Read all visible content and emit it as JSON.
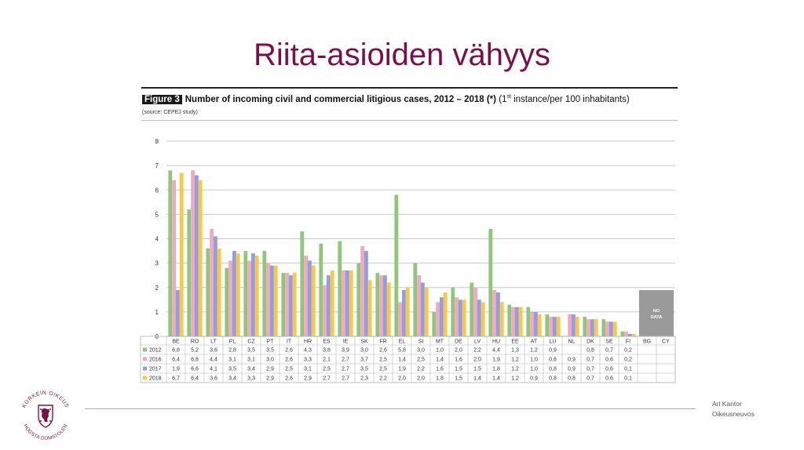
{
  "slide": {
    "title": "Riita-asioiden vähyys",
    "presenter_name": "Ari Kantor",
    "presenter_role": "Oikeusneuvos",
    "logo": {
      "icon": "lion-crest-icon",
      "text_top": "KORKEIN OIKEUS",
      "text_bottom": "HÖGSTA DOMSTOLEN",
      "color": "#7b1048"
    }
  },
  "figure": {
    "badge": "Figure 3",
    "heading": "Number of incoming civil and commercial litigious cases, 2012 – 2018 (*)",
    "heading_suffix_pre": "(1",
    "heading_sup": "st",
    "heading_suffix_post": " instance/per 100 inhabitants)",
    "source": "(source: CEPEJ study)"
  },
  "chart_data": {
    "type": "bar",
    "ylim": [
      0,
      8
    ],
    "yticks": [
      "0",
      "1",
      "2",
      "3",
      "4",
      "5",
      "6",
      "7",
      "8"
    ],
    "grid": true,
    "categories": [
      "BE",
      "RO",
      "LT",
      "PL",
      "CZ",
      "PT",
      "IT",
      "HR",
      "ES",
      "IE",
      "SK",
      "FR",
      "EL",
      "SI",
      "MT",
      "DE",
      "LV",
      "HU",
      "EE",
      "AT",
      "LU",
      "NL",
      "DK",
      "SE",
      "FI",
      "BG",
      "CY"
    ],
    "series": [
      {
        "name": "2012",
        "color": "#8fc67a",
        "values": [
          6.8,
          5.2,
          3.6,
          2.8,
          3.5,
          3.5,
          2.6,
          4.3,
          3.8,
          3.9,
          3.0,
          2.6,
          5.8,
          3.0,
          1.0,
          2.0,
          2.2,
          4.4,
          1.3,
          1.2,
          0.9,
          null,
          0.8,
          0.7,
          0.2,
          null,
          null
        ],
        "labels": [
          "6,8",
          "5,2",
          "3,6",
          "2,8",
          "3,5",
          "3,5",
          "2,6",
          "4,3",
          "3,8",
          "3,9",
          "3,0",
          "2,6",
          "5,8",
          "3,0",
          "1,0",
          "2,0",
          "2,2",
          "4,4",
          "1,3",
          "1,2",
          "0,9",
          "",
          "0,8",
          "0,7",
          "0,2",
          "",
          ""
        ]
      },
      {
        "name": "2016",
        "color": "#f2a7c3",
        "values": [
          6.4,
          6.8,
          4.4,
          3.1,
          3.1,
          3.0,
          2.6,
          3.3,
          2.1,
          2.7,
          3.7,
          2.5,
          1.4,
          2.5,
          1.4,
          1.6,
          2.0,
          1.9,
          1.2,
          1.0,
          0.8,
          0.9,
          0.7,
          0.6,
          0.2,
          null,
          null
        ],
        "labels": [
          "6,4",
          "6,8",
          "4,4",
          "3,1",
          "3,1",
          "3,0",
          "2,6",
          "3,3",
          "2,1",
          "2,7",
          "3,7",
          "2,5",
          "1,4",
          "2,5",
          "1,4",
          "1,6",
          "2,0",
          "1,9",
          "1,2",
          "1,0",
          "0,8",
          "0,9",
          "0,7",
          "0,6",
          "0,2",
          "",
          ""
        ]
      },
      {
        "name": "2017",
        "color": "#8f9fdc",
        "values": [
          1.9,
          6.6,
          4.1,
          3.5,
          3.4,
          2.9,
          2.5,
          3.1,
          2.5,
          2.7,
          3.5,
          2.5,
          1.9,
          2.2,
          1.6,
          1.5,
          1.5,
          1.8,
          1.2,
          1.0,
          0.8,
          0.9,
          0.7,
          0.6,
          0.1,
          null,
          null
        ],
        "labels": [
          "1,9",
          "6,6",
          "4,1",
          "3,5",
          "3,4",
          "2,9",
          "2,5",
          "3,1",
          "2,5",
          "2,7",
          "3,5",
          "2,5",
          "1,9",
          "2,2",
          "1,6",
          "1,5",
          "1,5",
          "1,8",
          "1,2",
          "1,0",
          "0,8",
          "0,9",
          "0,7",
          "0,6",
          "0,1",
          "",
          ""
        ]
      },
      {
        "name": "2018",
        "color": "#fcc646",
        "values": [
          6.7,
          6.4,
          3.6,
          3.4,
          3.3,
          2.9,
          2.6,
          2.9,
          2.7,
          2.7,
          2.3,
          2.2,
          2.0,
          2.0,
          1.8,
          1.5,
          1.4,
          1.4,
          1.2,
          0.9,
          0.8,
          0.8,
          0.7,
          0.6,
          0.1,
          null,
          null
        ],
        "labels": [
          "6,7",
          "6,4",
          "3,6",
          "3,4",
          "3,3",
          "2,9",
          "2,6",
          "2,9",
          "2,7",
          "2,7",
          "2,3",
          "2,2",
          "2,0",
          "2,0",
          "1,8",
          "1,5",
          "1,4",
          "1,4",
          "1,2",
          "0,9",
          "0,8",
          "0,8",
          "0,7",
          "0,6",
          "0,1",
          "",
          ""
        ]
      }
    ],
    "annotation": {
      "text_line1": "NO",
      "text_line2": "DATA",
      "color": "#9a9a9a",
      "categories": [
        "BG",
        "CY"
      ]
    }
  }
}
